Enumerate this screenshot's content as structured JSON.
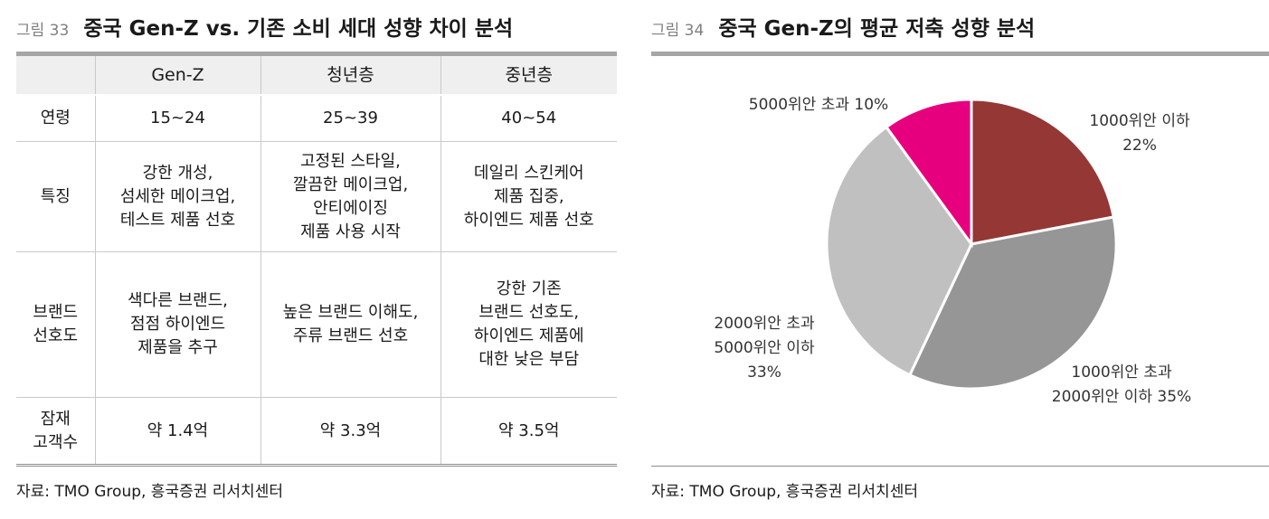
{
  "left": {
    "fig_no": "그림 33",
    "title": "중국 Gen-Z vs. 기존 소비 세대 성향 차이 분석",
    "columns": [
      "",
      "Gen-Z",
      "청년층",
      "중년층"
    ],
    "rows": [
      {
        "label": [
          "연령"
        ],
        "cells": [
          [
            "15~24"
          ],
          [
            "25~39"
          ],
          [
            "40~54"
          ]
        ]
      },
      {
        "label": [
          "특징"
        ],
        "cells": [
          [
            "강한 개성,",
            "섬세한 메이크업,",
            "테스트 제품 선호"
          ],
          [
            "고정된 스타일,",
            "깔끔한 메이크업,",
            "안티에이징",
            "제품 사용 시작"
          ],
          [
            "데일리 스킨케어",
            "제품 집중,",
            "하이엔드 제품 선호"
          ]
        ]
      },
      {
        "label": [
          "브랜드",
          "선호도"
        ],
        "cells": [
          [
            "색다른 브랜드,",
            "점점 하이엔드",
            "제품을 추구"
          ],
          [
            "높은 브랜드 이해도,",
            "주류 브랜드 선호"
          ],
          [
            "강한 기존",
            "브랜드 선호도,",
            "하이엔드 제품에",
            "대한 낮은 부담"
          ]
        ]
      },
      {
        "label": [
          "잠재",
          "고객수"
        ],
        "cells": [
          [
            "약 1.4억"
          ],
          [
            "약 3.3억"
          ],
          [
            "약 3.5억"
          ]
        ]
      }
    ],
    "source": "자료: TMO Group, 흥국증권 리서치센터"
  },
  "right": {
    "fig_no": "그림 34",
    "title": "중국 Gen-Z의 평균 저축 성향 분석",
    "source": "자료: TMO Group, 흥국증권 리서치센터"
  },
  "chart_data": {
    "type": "pie",
    "title": "중국 Gen-Z의 평균 저축 성향 분석",
    "slices": [
      {
        "label": [
          "1000위안 이하",
          "22%"
        ],
        "value": 22,
        "color": "#953735"
      },
      {
        "label": [
          "1000위안 초과",
          "2000위안 이하 35%"
        ],
        "value": 35,
        "color": "#969696"
      },
      {
        "label": [
          "2000위안 초과",
          "5000위안 이하",
          "33%"
        ],
        "value": 33,
        "color": "#c0c0c0"
      },
      {
        "label": [
          "5000위안 초과 10%"
        ],
        "value": 10,
        "color": "#e6007e"
      }
    ]
  }
}
